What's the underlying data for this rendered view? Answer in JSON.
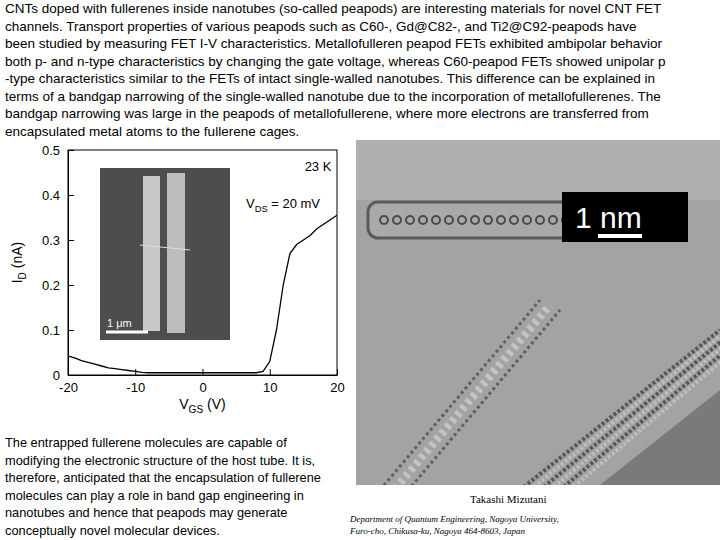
{
  "chart_data": {
    "type": "line",
    "x": [
      -20,
      -19,
      -18,
      -17,
      -16,
      -15,
      -14,
      -13,
      -12,
      -11,
      -10,
      -9,
      -8,
      -7,
      -6,
      -5,
      -4,
      -3,
      -2,
      -1,
      0,
      1,
      2,
      3,
      4,
      5,
      6,
      7,
      8,
      9,
      10,
      11,
      12,
      13,
      14,
      15,
      16,
      17,
      18,
      19,
      20
    ],
    "values": [
      0.042,
      0.038,
      0.032,
      0.028,
      0.024,
      0.02,
      0.016,
      0.014,
      0.012,
      0.01,
      0.008,
      0.006,
      0.005,
      0.005,
      0.005,
      0.005,
      0.005,
      0.005,
      0.005,
      0.005,
      0.005,
      0.005,
      0.005,
      0.005,
      0.005,
      0.005,
      0.005,
      0.005,
      0.005,
      0.008,
      0.03,
      0.1,
      0.2,
      0.27,
      0.29,
      0.3,
      0.31,
      0.325,
      0.335,
      0.345,
      0.355
    ],
    "color": "#000000",
    "xlim": [
      -20,
      20
    ],
    "xticks": [
      -20,
      -10,
      0,
      10,
      20
    ],
    "ylim": [
      0,
      0.5
    ],
    "yticks": [
      0,
      0.1,
      0.2,
      0.3,
      0.4,
      0.5
    ],
    "xlabel": [
      "V",
      "GS",
      " (V)"
    ],
    "ylabel": [
      "I",
      "D",
      " (nA)"
    ],
    "annotations": [
      [
        "23 K"
      ],
      [
        "V",
        "DS",
        " = 20 mV"
      ],
      [
        "1 μm"
      ]
    ]
  },
  "page": {
    "paragraphs": [
      [
        "CNTs doped with fullerenes inside nanotubes (so-called peapods) are interesting materials for novel CNT FET",
        "channels. Transport properties of various peapods such as C60-, Gd@C82-, and Ti2@C92-peapods have",
        "been studied by measuring FET I-V characteristics. Metallofulleren peapod FETs exhibited ambipolar behavior",
        "both p- and n-type characteristics by changing the gate voltage, whereas C60-peapod FETs showed unipolar p",
        "-type characteristics similar to the FETs of intact single-walled nanotubes. This difference can be explained in",
        "terms of a bandgap narrowing of the single-walled nanotube due to the incorporation of metallofullerenes. The",
        "bandgap narrowing was large in the peapods of metallofullerene, where more electrons are transferred from",
        "encapsulated metal atoms to the fullerene cages."
      ],
      [
        "The entrapped fullerene molecules are capable of",
        "modifying the electronic structure of the host tube. It is,",
        "therefore,  anticipated that the encapsulation of fullerene",
        "molecules can play a role in band gap engineering in",
        "nanotubes and hence that peapods may generate",
        "conceptually novel molecular devices."
      ]
    ],
    "tem_image": {
      "scale_label": "1 nm",
      "credit": [
        "Takashi Mizutani",
        "Department of Quantum Engineering, Nagoya University,",
        "Furo-cho, Chikusa-ku, Nagoya 464-8603, Japan"
      ]
    }
  }
}
